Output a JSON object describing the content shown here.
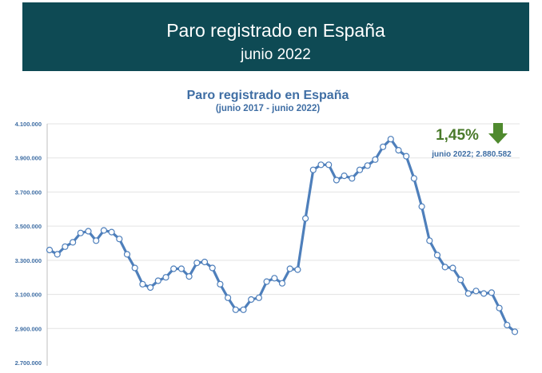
{
  "banner": {
    "title": "Paro registrado en España",
    "subtitle": "junio 2022"
  },
  "colors": {
    "banner_bg": "#0e4a54",
    "line": "#4e7fbb",
    "marker_fill": "#ffffff",
    "highlight_text": "#4a7a2b",
    "arrow": "#4f8a2e",
    "title_text": "#3f6ea4"
  },
  "chart_data": {
    "type": "line",
    "title": "Paro registrado en España",
    "subtitle": "(junio 2017 - junio 2022)",
    "xlabel": "",
    "ylabel": "",
    "ylim": [
      2700000,
      4100000
    ],
    "yticks": [
      2700000,
      2900000,
      3100000,
      3300000,
      3500000,
      3700000,
      3900000,
      4100000
    ],
    "ytick_labels": [
      "2.700.000",
      "2.900.000",
      "3.100.000",
      "3.300.000",
      "3.500.000",
      "3.700.000",
      "3.900.000",
      "4.100.000"
    ],
    "grid": true,
    "legend": "none",
    "series": [
      {
        "name": "Paro registrado",
        "values": [
          3360000,
          3335000,
          3380000,
          3405000,
          3460000,
          3470000,
          3415000,
          3475000,
          3465000,
          3425000,
          3335000,
          3255000,
          3160000,
          3140000,
          3180000,
          3200000,
          3250000,
          3250000,
          3205000,
          3285000,
          3290000,
          3255000,
          3160000,
          3080000,
          3010000,
          3010000,
          3070000,
          3080000,
          3175000,
          3195000,
          3165000,
          3250000,
          3245000,
          3545000,
          3830000,
          3860000,
          3860000,
          3770000,
          3795000,
          3780000,
          3830000,
          3855000,
          3890000,
          3965000,
          4010000,
          3945000,
          3910000,
          3780000,
          3615000,
          3415000,
          3330000,
          3260000,
          3255000,
          3185000,
          3105000,
          3120000,
          3105000,
          3110000,
          3020000,
          2920000,
          2880582
        ]
      }
    ],
    "annotations": [
      {
        "label": "1,45%",
        "note": "junio 2022; 2.880.582",
        "arrow": "down"
      }
    ]
  }
}
